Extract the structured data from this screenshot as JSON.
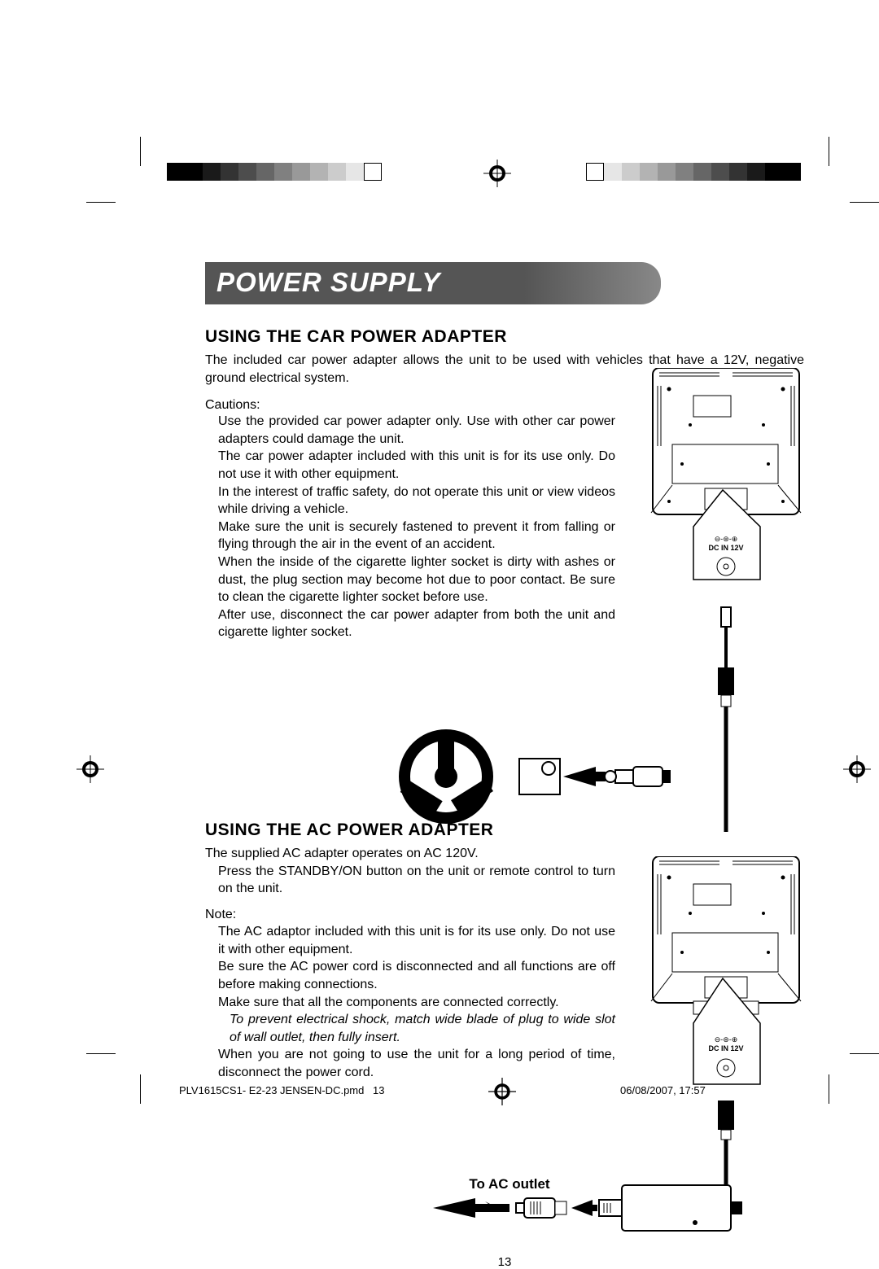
{
  "title": "POWER SUPPLY",
  "section1": {
    "heading": "USING THE CAR POWER ADAPTER",
    "intro": "The included car power adapter allows the unit to be used with vehicles that have a 12V, negative ground electrical system.",
    "cautions_label": "Cautions:",
    "cautions": [
      "Use the provided car power adapter only. Use with other car power adapters could damage the unit.",
      "The car power adapter included with this unit is for its use only. Do not use it with other equipment.",
      "In the interest of traffic safety, do not operate this unit or view videos while driving a vehicle.",
      "Make sure the unit is securely fastened to prevent it from falling or flying through the air in the event of an accident.",
      "When the inside of the cigarette lighter socket is dirty with ashes or dust, the plug section may become hot due to poor contact. Be sure to clean the cigarette lighter socket before use.",
      "After use, disconnect the car power adapter from both the unit and cigarette lighter socket."
    ]
  },
  "section2": {
    "heading": "USING THE AC POWER ADAPTER",
    "intro": "The supplied AC adapter operates on AC 120V.",
    "step": "Press the STANDBY/ON button on the unit or remote control to turn on the unit.",
    "note_label": "Note:",
    "notes": [
      "The AC adaptor included with this unit is for its use only. Do not use it with other equipment.",
      "Be sure the AC power cord is disconnected and all functions are off before making connections.",
      "Make sure that all the components are connected correctly."
    ],
    "italic_note": "To prevent electrical shock, match wide blade of plug to wide slot of wall outlet, then fully insert.",
    "notes2": [
      "When you are not going to use the  unit for a long period of time, disconnect the power cord."
    ]
  },
  "diagram_labels": {
    "dc_in": "DC IN 12V",
    "to_ac_outlet": "To AC outlet"
  },
  "page_number": "13",
  "footer": {
    "file": "PLV1615CS1- E2-23 JENSEN-DC.pmd",
    "pg": "13",
    "date": "06/08/2007, 17:57"
  },
  "colors": {
    "titlebar_from": "#555555",
    "titlebar_to": "#888888",
    "text": "#000000",
    "bg": "#ffffff"
  },
  "print_marks": {
    "reg_shades": [
      "#000000",
      "#000000",
      "#1a1a1a",
      "#333333",
      "#4d4d4d",
      "#666666",
      "#808080",
      "#999999",
      "#b3b3b3",
      "#cccccc",
      "#e6e6e6",
      "#ffffff"
    ]
  }
}
